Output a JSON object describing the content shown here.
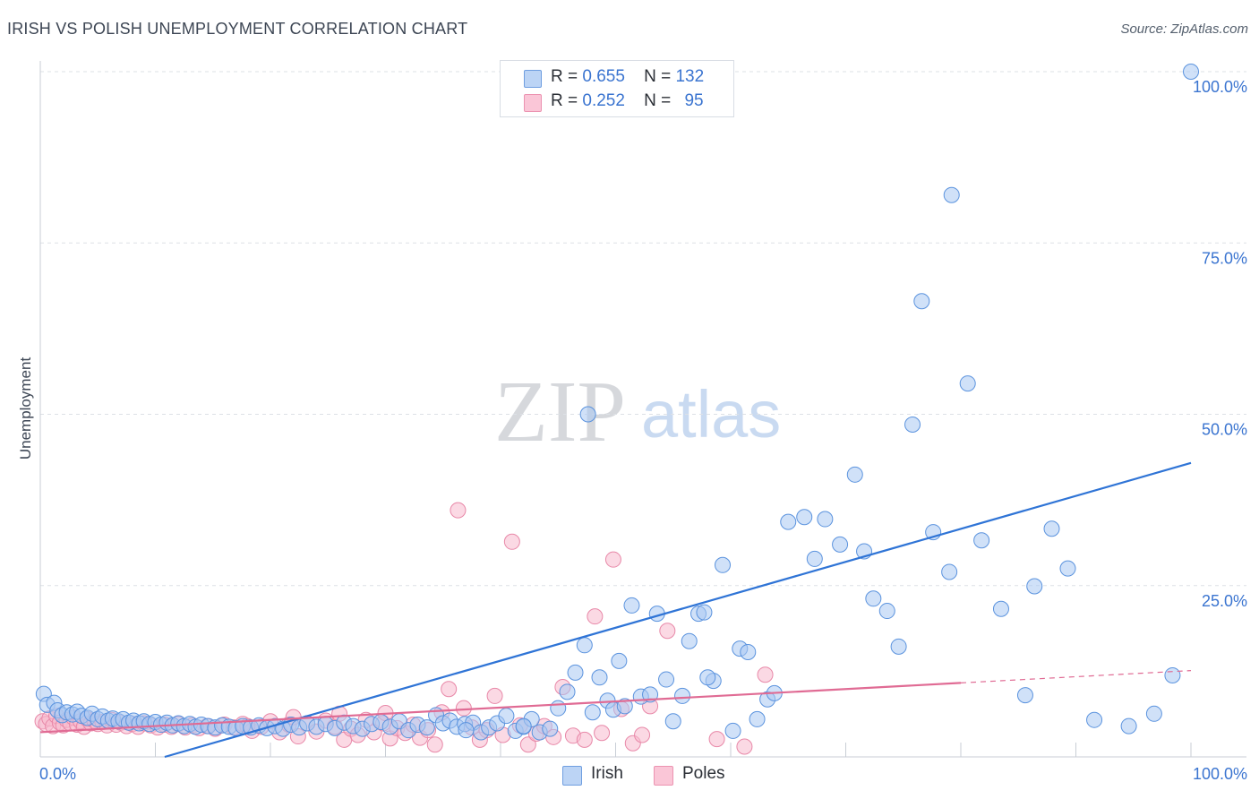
{
  "title": "IRISH VS POLISH UNEMPLOYMENT CORRELATION CHART",
  "source": "Source: ZipAtlas.com",
  "watermark": {
    "zip": "ZIP",
    "atlas": "atlas"
  },
  "colors": {
    "irish_fill": "#a9c8f2",
    "irish_stroke": "#5b93de",
    "irish_line": "#2f74d6",
    "poles_fill": "#f7b9cd",
    "poles_stroke": "#e888a8",
    "poles_line": "#e06b94",
    "tick_label": "#3a74d0",
    "grid": "#dde1e6"
  },
  "stats": [
    {
      "r_label": "R =",
      "r_value": "0.655",
      "n_label": "N =",
      "n_value": "132"
    },
    {
      "r_label": "R =",
      "r_value": "0.252",
      "n_label": "N =",
      "n_value": "95"
    }
  ],
  "legend": {
    "irish": "Irish",
    "poles": "Poles"
  },
  "chart_data": {
    "type": "scatter",
    "title": "IRISH VS POLISH UNEMPLOYMENT CORRELATION CHART",
    "xlabel": "",
    "ylabel": "Unemployment",
    "xlim": [
      0,
      100
    ],
    "ylim": [
      0,
      100
    ],
    "x_tick_labels": [
      "0.0%",
      "100.0%"
    ],
    "y_tick_labels": [
      "25.0%",
      "50.0%",
      "75.0%",
      "100.0%"
    ],
    "y_ticks": [
      25,
      50,
      75,
      100
    ],
    "legend_position": "bottom-center",
    "grid": true,
    "series": [
      {
        "name": "Irish",
        "r": 0.655,
        "n": 132,
        "trend": {
          "x": [
            0,
            100
          ],
          "y": [
            -5.2,
            42.9
          ]
        },
        "points": [
          [
            0.3,
            9.2
          ],
          [
            0.6,
            7.6
          ],
          [
            1.2,
            7.9
          ],
          [
            1.5,
            6.8
          ],
          [
            1.9,
            6.1
          ],
          [
            2.3,
            6.5
          ],
          [
            2.8,
            6.2
          ],
          [
            3.2,
            6.6
          ],
          [
            3.6,
            6.0
          ],
          [
            4.1,
            5.7
          ],
          [
            4.5,
            6.3
          ],
          [
            5.0,
            5.5
          ],
          [
            5.4,
            5.9
          ],
          [
            5.9,
            5.3
          ],
          [
            6.3,
            5.6
          ],
          [
            6.8,
            5.2
          ],
          [
            7.2,
            5.5
          ],
          [
            7.7,
            5.0
          ],
          [
            8.1,
            5.3
          ],
          [
            8.6,
            4.9
          ],
          [
            9.0,
            5.2
          ],
          [
            9.5,
            4.8
          ],
          [
            10.0,
            5.1
          ],
          [
            10.5,
            4.7
          ],
          [
            11.0,
            5.0
          ],
          [
            11.5,
            4.6
          ],
          [
            12.0,
            4.9
          ],
          [
            12.5,
            4.5
          ],
          [
            13.0,
            4.8
          ],
          [
            13.5,
            4.4
          ],
          [
            14.0,
            4.7
          ],
          [
            14.6,
            4.5
          ],
          [
            15.2,
            4.3
          ],
          [
            15.8,
            4.6
          ],
          [
            16.4,
            4.4
          ],
          [
            17.0,
            4.2
          ],
          [
            17.6,
            4.5
          ],
          [
            18.3,
            4.3
          ],
          [
            19.0,
            4.6
          ],
          [
            19.7,
            4.2
          ],
          [
            20.4,
            4.5
          ],
          [
            21.1,
            4.1
          ],
          [
            21.8,
            4.7
          ],
          [
            22.5,
            4.3
          ],
          [
            23.2,
            4.9
          ],
          [
            24.0,
            4.4
          ],
          [
            24.8,
            4.8
          ],
          [
            25.6,
            4.2
          ],
          [
            26.4,
            5.0
          ],
          [
            27.2,
            4.5
          ],
          [
            28.0,
            4.1
          ],
          [
            28.8,
            4.8
          ],
          [
            29.6,
            5.1
          ],
          [
            30.4,
            4.4
          ],
          [
            31.2,
            5.2
          ],
          [
            32.0,
            3.9
          ],
          [
            32.8,
            4.7
          ],
          [
            33.6,
            4.3
          ],
          [
            34.4,
            6.1
          ],
          [
            35.0,
            4.9
          ],
          [
            35.6,
            5.3
          ],
          [
            36.2,
            4.4
          ],
          [
            36.9,
            4.8
          ],
          [
            37.6,
            5.0
          ],
          [
            38.3,
            3.6
          ],
          [
            39.0,
            4.3
          ],
          [
            39.7,
            4.9
          ],
          [
            40.5,
            6.0
          ],
          [
            41.3,
            3.8
          ],
          [
            42.0,
            4.4
          ],
          [
            42.7,
            5.5
          ],
          [
            43.4,
            3.6
          ],
          [
            44.3,
            4.1
          ],
          [
            45.0,
            7.1
          ],
          [
            45.8,
            9.5
          ],
          [
            46.5,
            12.3
          ],
          [
            47.3,
            16.3
          ],
          [
            48.0,
            6.5
          ],
          [
            48.6,
            11.6
          ],
          [
            49.3,
            8.2
          ],
          [
            49.8,
            6.9
          ],
          [
            50.3,
            14.0
          ],
          [
            50.8,
            7.4
          ],
          [
            51.4,
            22.1
          ],
          [
            52.2,
            8.8
          ],
          [
            53.0,
            9.1
          ],
          [
            53.6,
            20.9
          ],
          [
            54.4,
            11.3
          ],
          [
            55.0,
            5.2
          ],
          [
            55.8,
            8.9
          ],
          [
            56.4,
            16.9
          ],
          [
            57.2,
            20.9
          ],
          [
            57.7,
            21.1
          ],
          [
            58.5,
            11.1
          ],
          [
            59.3,
            28.0
          ],
          [
            60.2,
            3.8
          ],
          [
            60.8,
            15.8
          ],
          [
            61.5,
            15.3
          ],
          [
            62.3,
            5.5
          ],
          [
            63.2,
            8.4
          ],
          [
            65.0,
            34.3
          ],
          [
            66.4,
            35.0
          ],
          [
            67.3,
            28.9
          ],
          [
            68.2,
            34.7
          ],
          [
            69.5,
            31.0
          ],
          [
            70.8,
            41.2
          ],
          [
            71.6,
            30.0
          ],
          [
            72.4,
            23.1
          ],
          [
            73.6,
            21.3
          ],
          [
            74.6,
            16.1
          ],
          [
            75.8,
            48.5
          ],
          [
            76.6,
            66.5
          ],
          [
            77.6,
            32.8
          ],
          [
            79.0,
            27.0
          ],
          [
            80.6,
            54.5
          ],
          [
            81.8,
            31.6
          ],
          [
            83.5,
            21.6
          ],
          [
            85.6,
            9.0
          ],
          [
            86.4,
            24.9
          ],
          [
            87.9,
            33.3
          ],
          [
            89.3,
            27.5
          ],
          [
            91.6,
            5.4
          ],
          [
            94.6,
            4.5
          ],
          [
            96.8,
            6.3
          ],
          [
            98.4,
            11.9
          ],
          [
            79.2,
            82.0
          ],
          [
            100.0,
            100.0
          ],
          [
            58.0,
            11.6
          ],
          [
            63.8,
            9.3
          ],
          [
            47.6,
            50.0
          ],
          [
            37.0,
            3.9
          ],
          [
            42.0,
            4.5
          ]
        ]
      },
      {
        "name": "Poles",
        "r": 0.252,
        "n": 95,
        "trend": {
          "x": [
            0,
            80
          ],
          "y": [
            3.6,
            10.8
          ]
        },
        "trend_dashed": {
          "x": [
            80,
            100
          ],
          "y": [
            10.8,
            12.6
          ]
        },
        "points": [
          [
            0.2,
            5.2
          ],
          [
            0.5,
            4.8
          ],
          [
            0.8,
            5.6
          ],
          [
            1.1,
            4.5
          ],
          [
            1.4,
            6.0
          ],
          [
            1.7,
            5.0
          ],
          [
            2.0,
            4.6
          ],
          [
            2.3,
            5.4
          ],
          [
            2.6,
            4.9
          ],
          [
            2.9,
            5.7
          ],
          [
            3.2,
            4.7
          ],
          [
            3.5,
            5.2
          ],
          [
            3.8,
            4.4
          ],
          [
            4.1,
            5.5
          ],
          [
            4.4,
            4.9
          ],
          [
            4.7,
            5.3
          ],
          [
            5.0,
            4.8
          ],
          [
            5.4,
            5.1
          ],
          [
            5.8,
            4.6
          ],
          [
            6.2,
            5.4
          ],
          [
            6.6,
            4.7
          ],
          [
            7.0,
            5.0
          ],
          [
            7.5,
            4.5
          ],
          [
            8.0,
            4.8
          ],
          [
            8.5,
            4.4
          ],
          [
            9.0,
            4.9
          ],
          [
            9.6,
            4.6
          ],
          [
            10.2,
            4.3
          ],
          [
            10.8,
            4.7
          ],
          [
            11.4,
            4.4
          ],
          [
            12.0,
            4.8
          ],
          [
            12.6,
            4.3
          ],
          [
            13.2,
            4.6
          ],
          [
            13.8,
            4.2
          ],
          [
            14.5,
            4.5
          ],
          [
            15.2,
            4.1
          ],
          [
            16.0,
            4.7
          ],
          [
            16.8,
            4.3
          ],
          [
            17.6,
            4.8
          ],
          [
            18.4,
            3.8
          ],
          [
            19.2,
            4.4
          ],
          [
            20.0,
            5.2
          ],
          [
            20.8,
            3.6
          ],
          [
            21.6,
            4.7
          ],
          [
            22.4,
            3.0
          ],
          [
            23.2,
            4.9
          ],
          [
            24.0,
            3.7
          ],
          [
            24.8,
            5.3
          ],
          [
            25.6,
            4.4
          ],
          [
            26.4,
            2.5
          ],
          [
            27.0,
            4.1
          ],
          [
            27.6,
            3.2
          ],
          [
            28.3,
            5.4
          ],
          [
            29.0,
            3.6
          ],
          [
            29.8,
            4.9
          ],
          [
            30.4,
            2.7
          ],
          [
            31.0,
            4.2
          ],
          [
            31.7,
            3.5
          ],
          [
            32.4,
            4.7
          ],
          [
            33.0,
            2.8
          ],
          [
            33.7,
            3.9
          ],
          [
            34.3,
            1.8
          ],
          [
            34.9,
            6.5
          ],
          [
            35.5,
            9.9
          ],
          [
            36.3,
            36.0
          ],
          [
            36.8,
            7.1
          ],
          [
            37.5,
            4.3
          ],
          [
            38.2,
            2.5
          ],
          [
            38.8,
            3.9
          ],
          [
            39.5,
            8.9
          ],
          [
            40.2,
            3.2
          ],
          [
            41.0,
            31.4
          ],
          [
            41.7,
            4.6
          ],
          [
            42.4,
            1.8
          ],
          [
            43.1,
            3.4
          ],
          [
            43.8,
            4.5
          ],
          [
            44.6,
            2.9
          ],
          [
            45.4,
            10.2
          ],
          [
            46.3,
            3.1
          ],
          [
            47.3,
            2.5
          ],
          [
            48.2,
            20.5
          ],
          [
            48.8,
            3.5
          ],
          [
            49.8,
            28.8
          ],
          [
            50.5,
            7.0
          ],
          [
            51.5,
            2.0
          ],
          [
            52.3,
            3.2
          ],
          [
            53.0,
            7.4
          ],
          [
            54.5,
            18.4
          ],
          [
            58.8,
            2.6
          ],
          [
            61.2,
            1.5
          ],
          [
            63.0,
            12.0
          ],
          [
            26.0,
            6.3
          ],
          [
            22.0,
            5.8
          ],
          [
            30.0,
            6.4
          ],
          [
            18.0,
            4.5
          ]
        ]
      }
    ]
  }
}
